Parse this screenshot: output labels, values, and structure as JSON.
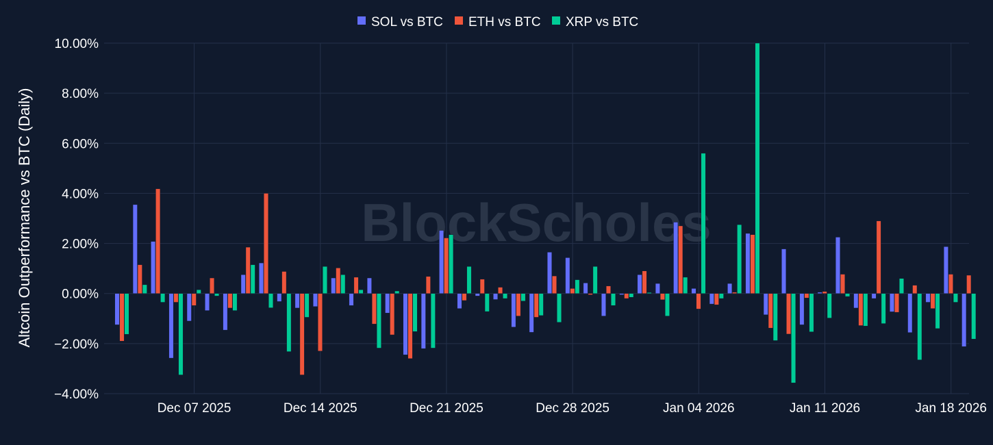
{
  "watermark": "BlockScholes",
  "colors": {
    "background": "#101a2d",
    "grid": "#24304a",
    "sol": "#636efa",
    "eth": "#ef553b",
    "xrp": "#00cc96",
    "text": "#ffffff"
  },
  "chart_data": {
    "type": "bar",
    "ylabel": "Altcoin Outperformance vs BTC (Daily)",
    "ylim": [
      -0.04,
      0.1
    ],
    "yticks": [
      -0.04,
      -0.02,
      0,
      0.02,
      0.04,
      0.06,
      0.08,
      0.1
    ],
    "ytick_labels": [
      "−4.00%",
      "−2.00%",
      "0.00%",
      "2.00%",
      "4.00%",
      "6.00%",
      "8.00%",
      "10.00%"
    ],
    "x_range": [
      "2025-12-02",
      "2026-01-19"
    ],
    "xticks": [
      "2025-12-07",
      "2025-12-14",
      "2025-12-21",
      "2025-12-28",
      "2026-01-04",
      "2026-01-11",
      "2026-01-18"
    ],
    "xtick_labels": [
      "Dec 07 2025",
      "Dec 14 2025",
      "Dec 21 2025",
      "Dec 28 2025",
      "Jan 04 2026",
      "Jan 11 2026",
      "Jan 18 2026"
    ],
    "legend_position": "top-center",
    "grid": true,
    "dates": [
      "2025-12-03",
      "2025-12-04",
      "2025-12-05",
      "2025-12-06",
      "2025-12-07",
      "2025-12-08",
      "2025-12-09",
      "2025-12-10",
      "2025-12-11",
      "2025-12-12",
      "2025-12-13",
      "2025-12-14",
      "2025-12-15",
      "2025-12-16",
      "2025-12-17",
      "2025-12-18",
      "2025-12-19",
      "2025-12-20",
      "2025-12-21",
      "2025-12-22",
      "2025-12-23",
      "2025-12-24",
      "2025-12-25",
      "2025-12-26",
      "2025-12-27",
      "2025-12-28",
      "2025-12-29",
      "2025-12-30",
      "2025-12-31",
      "2026-01-01",
      "2026-01-02",
      "2026-01-03",
      "2026-01-04",
      "2026-01-05",
      "2026-01-06",
      "2026-01-07",
      "2026-01-08",
      "2026-01-09",
      "2026-01-10",
      "2026-01-11",
      "2026-01-12",
      "2026-01-13",
      "2026-01-14",
      "2026-01-15",
      "2026-01-16",
      "2026-01-17",
      "2026-01-18",
      "2026-01-19"
    ],
    "series": [
      {
        "name": "SOL vs BTC",
        "color": "#636efa",
        "values": [
          -0.0125,
          0.0355,
          0.0208,
          -0.0258,
          -0.011,
          -0.0068,
          -0.0146,
          0.0075,
          0.0122,
          -0.0032,
          -0.0058,
          -0.0052,
          0.0062,
          -0.0048,
          0.0062,
          -0.0078,
          -0.0245,
          -0.022,
          0.0252,
          -0.006,
          -0.001,
          -0.0024,
          -0.0134,
          -0.0155,
          0.0165,
          0.0143,
          0.0042,
          -0.009,
          -0.0005,
          0.0075,
          0.004,
          0.0285,
          0.002,
          -0.0042,
          0.004,
          0.024,
          -0.0085,
          0.0178,
          -0.0125,
          0.0005,
          0.0225,
          -0.0058,
          -0.002,
          -0.0073,
          -0.0156,
          -0.0035,
          0.0187,
          -0.0212
        ]
      },
      {
        "name": "ETH vs BTC",
        "color": "#ef553b",
        "values": [
          -0.019,
          0.0115,
          0.0418,
          -0.0035,
          -0.0048,
          0.0062,
          -0.0058,
          0.0185,
          0.04,
          0.0088,
          -0.0325,
          -0.023,
          0.0102,
          0.0065,
          -0.0122,
          -0.0165,
          -0.026,
          0.0068,
          0.0222,
          -0.0028,
          0.0057,
          0.0025,
          -0.009,
          -0.0095,
          0.007,
          0.002,
          -0.0005,
          0.003,
          -0.002,
          0.009,
          -0.0025,
          0.027,
          -0.0062,
          -0.0045,
          0.0005,
          0.0235,
          -0.0138,
          -0.0162,
          -0.0018,
          0.0008,
          0.0077,
          -0.0128,
          0.029,
          -0.0075,
          0.0033,
          -0.006,
          0.0077,
          0.0073
        ]
      },
      {
        "name": "XRP vs BTC",
        "color": "#00cc96",
        "values": [
          -0.0163,
          0.0035,
          -0.0035,
          -0.0325,
          0.0015,
          -0.001,
          -0.0068,
          0.0115,
          -0.0057,
          -0.0232,
          -0.0095,
          0.0108,
          0.0075,
          0.0015,
          -0.0218,
          0.001,
          -0.0152,
          -0.0218,
          0.0235,
          0.0108,
          -0.0072,
          -0.002,
          -0.003,
          -0.0088,
          -0.0115,
          0.0055,
          0.0108,
          -0.0048,
          -0.0015,
          0.0004,
          -0.009,
          0.0065,
          0.056,
          -0.002,
          0.0275,
          0.1,
          -0.0188,
          -0.0357,
          -0.0153,
          -0.0098,
          -0.0012,
          -0.013,
          -0.012,
          0.006,
          -0.0265,
          -0.014,
          -0.0035,
          -0.0182
        ]
      }
    ]
  }
}
